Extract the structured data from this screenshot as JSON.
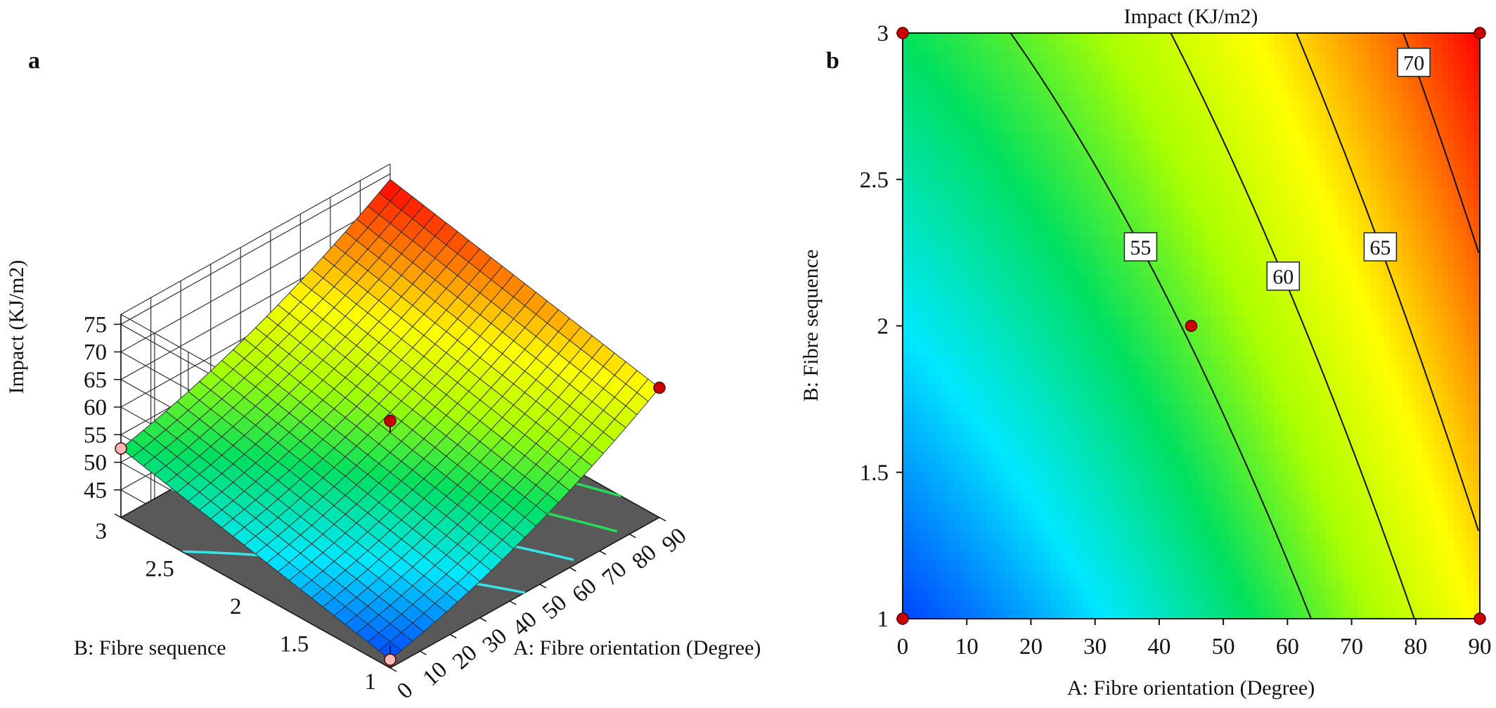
{
  "figure": {
    "panel_a_letter": "a",
    "panel_b_letter": "b"
  },
  "chart_data": [
    {
      "type": "surface3d",
      "panel": "a",
      "xlabel": "A: Fibre orientation (Degree)",
      "ylabel": "B: Fibre sequence",
      "zlabel": "Impact (KJ/m2)",
      "x_ticks": [
        "0",
        "10",
        "20",
        "30",
        "40",
        "50",
        "60",
        "70",
        "80",
        "90"
      ],
      "y_ticks": [
        "1",
        "1.5",
        "2",
        "2.5",
        "3"
      ],
      "z_ticks": [
        "45",
        "50",
        "55",
        "60",
        "65",
        "70",
        "75"
      ],
      "xlim": [
        0,
        90
      ],
      "ylim": [
        1,
        3
      ],
      "zlim": [
        40,
        75
      ],
      "surface_corners": [
        {
          "x": 0,
          "y": 1,
          "z": 41.5
        },
        {
          "x": 90,
          "y": 1,
          "z": 63.5
        },
        {
          "x": 0,
          "y": 3,
          "z": 52.5
        },
        {
          "x": 90,
          "y": 3,
          "z": 74
        }
      ],
      "design_points": [
        {
          "x": 45,
          "y": 2,
          "z": 57.5,
          "above_surface": true
        },
        {
          "x": 90,
          "y": 1,
          "z": 63.5,
          "above_surface": true
        },
        {
          "x": 0,
          "y": 3,
          "z": 52.5,
          "above_surface": false
        },
        {
          "x": 0,
          "y": 1,
          "z": 41.5,
          "above_surface": false
        }
      ],
      "floor_color": "#595959",
      "point_color_above": "#cc0000",
      "point_color_below": "#f6b8b8"
    },
    {
      "type": "contour",
      "panel": "b",
      "title": "Impact (KJ/m2)",
      "xlabel": "A: Fibre orientation (Degree)",
      "ylabel": "B: Fibre sequence",
      "x_ticks": [
        "0",
        "10",
        "20",
        "30",
        "40",
        "50",
        "60",
        "70",
        "80",
        "90"
      ],
      "y_ticks": [
        "1",
        "1.5",
        "2",
        "2.5",
        "3"
      ],
      "xlim": [
        0,
        90
      ],
      "ylim": [
        1,
        3
      ],
      "contour_levels": [
        {
          "level": 55,
          "label": "55"
        },
        {
          "level": 60,
          "label": "60"
        },
        {
          "level": 65,
          "label": "65"
        },
        {
          "level": 70,
          "label": "70"
        }
      ],
      "design_points": [
        {
          "x": 0,
          "y": 1
        },
        {
          "x": 90,
          "y": 1
        },
        {
          "x": 0,
          "y": 3
        },
        {
          "x": 90,
          "y": 3
        },
        {
          "x": 45,
          "y": 2
        }
      ],
      "point_color": "#cc0000",
      "colormap": [
        "#0044ff",
        "#00e8ff",
        "#00e060",
        "#aaff00",
        "#ffff00",
        "#ff8000",
        "#ff0000"
      ]
    }
  ]
}
